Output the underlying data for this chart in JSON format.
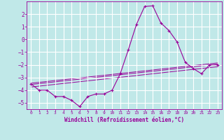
{
  "title": "",
  "xlabel": "Windchill (Refroidissement éolien,°C)",
  "ylabel": "",
  "background_color": "#c0e8e8",
  "grid_color": "#ffffff",
  "line_color": "#990099",
  "xlim": [
    -0.5,
    23.5
  ],
  "ylim": [
    -5.5,
    3.0
  ],
  "yticks": [
    -5,
    -4,
    -3,
    -2,
    -1,
    0,
    1,
    2
  ],
  "xticks": [
    0,
    1,
    2,
    3,
    4,
    5,
    6,
    7,
    8,
    9,
    10,
    11,
    12,
    13,
    14,
    15,
    16,
    17,
    18,
    19,
    20,
    21,
    22,
    23
  ],
  "curve1_x": [
    0,
    1,
    2,
    3,
    4,
    5,
    6,
    7,
    8,
    9,
    10,
    11,
    12,
    13,
    14,
    15,
    16,
    17,
    18,
    19,
    20,
    21,
    22,
    23
  ],
  "curve1_y": [
    -3.5,
    -4.0,
    -4.0,
    -4.5,
    -4.5,
    -4.8,
    -5.3,
    -4.5,
    -4.3,
    -4.3,
    -4.0,
    -2.7,
    -0.8,
    1.2,
    2.6,
    2.65,
    1.3,
    0.7,
    -0.2,
    -1.8,
    -2.3,
    -2.7,
    -2.0,
    -2.0
  ],
  "line1_x": [
    0,
    23
  ],
  "line1_y": [
    -3.55,
    -1.95
  ],
  "line2_x": [
    0,
    23
  ],
  "line2_y": [
    -3.75,
    -2.15
  ],
  "line3_x": [
    0,
    23
  ],
  "line3_y": [
    -3.45,
    -1.85
  ]
}
